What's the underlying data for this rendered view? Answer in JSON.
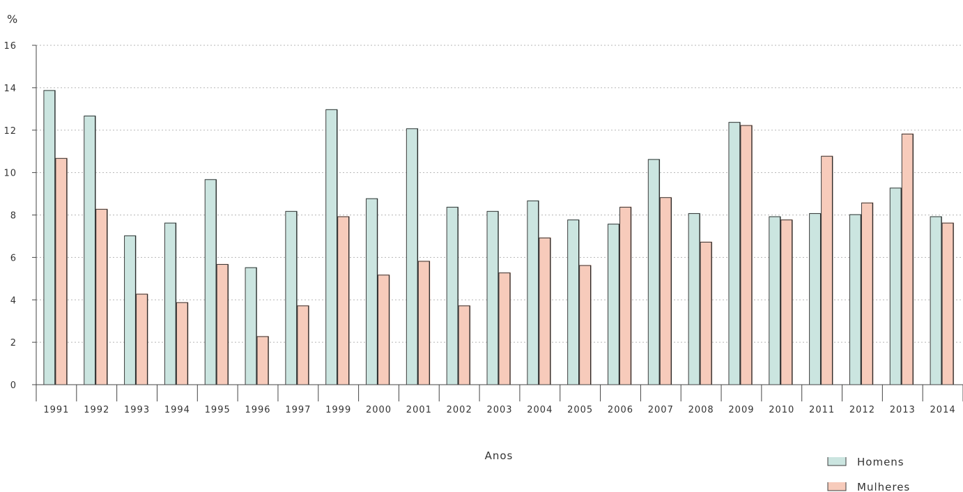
{
  "chart_data": {
    "type": "bar",
    "title": "",
    "ylabel": "%",
    "xlabel": "Anos",
    "ylim": [
      0,
      16
    ],
    "yticks": [
      0,
      2,
      4,
      6,
      8,
      10,
      12,
      14,
      16
    ],
    "grid": true,
    "legend_position": "bottom-right",
    "categories": [
      "1991",
      "1992",
      "1993",
      "1994",
      "1995",
      "1996",
      "1997",
      "1999",
      "2000",
      "2001",
      "2002",
      "2003",
      "2004",
      "2005",
      "2006",
      "2007",
      "2008",
      "2009",
      "2010",
      "2011",
      "2012",
      "2013",
      "2014"
    ],
    "series": [
      {
        "name": "Homens",
        "color": "#cbe5e0",
        "values": [
          13.9,
          12.7,
          7.05,
          7.65,
          9.7,
          5.55,
          8.2,
          13.0,
          8.8,
          12.1,
          8.4,
          8.2,
          8.7,
          7.8,
          7.6,
          10.65,
          8.1,
          12.4,
          7.95,
          8.1,
          8.05,
          9.3,
          7.95
        ]
      },
      {
        "name": "Mulheres",
        "color": "#f7cbbb",
        "values": [
          10.7,
          8.3,
          4.3,
          3.9,
          5.7,
          2.3,
          3.75,
          7.95,
          5.2,
          5.85,
          3.75,
          5.3,
          6.95,
          5.65,
          8.4,
          8.85,
          6.75,
          12.25,
          7.8,
          10.8,
          8.6,
          11.85,
          7.65
        ]
      }
    ]
  }
}
